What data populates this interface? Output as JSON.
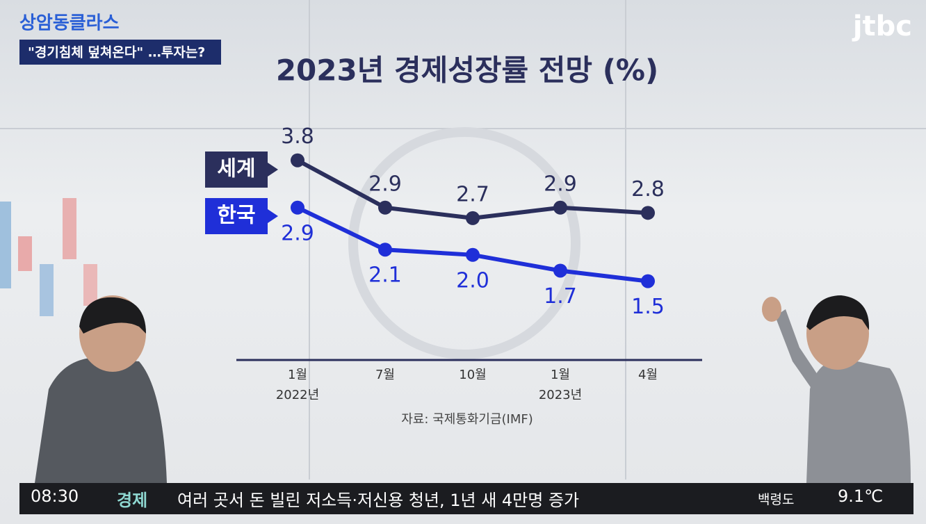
{
  "show": {
    "logo": "상암동클라스",
    "caption": "\"경기침체 덮쳐온다\" …투자는?",
    "channel": "jtbc"
  },
  "ticker": {
    "time": "08:30",
    "section": "경제",
    "headline": "여러 곳서 돈 빌린 저소득·저신용 청년, 1년 새 4만명 증가",
    "place": "백령도",
    "temperature": "9.1℃"
  },
  "chart_data": {
    "type": "line",
    "title": "2023년 경제성장률 전망 (%)",
    "categories": [
      "1월",
      "7월",
      "10월",
      "1월",
      "4월"
    ],
    "category_years": [
      "2022년",
      null,
      null,
      "2023년",
      null
    ],
    "series": [
      {
        "name": "세계",
        "color": "#2b2f5c",
        "values": [
          3.8,
          2.9,
          2.7,
          2.9,
          2.8
        ],
        "value_labels": [
          "3.8",
          "2.9",
          "2.7",
          "2.9",
          "2.8"
        ]
      },
      {
        "name": "한국",
        "color": "#1f2fd8",
        "values": [
          2.9,
          2.1,
          2.0,
          1.7,
          1.5
        ],
        "value_labels": [
          "2.9",
          "2.1",
          "2.0",
          "1.7",
          "1.5"
        ]
      }
    ],
    "ylim": [
      0,
      4
    ],
    "source": "자료: 국제통화기금(IMF)"
  }
}
